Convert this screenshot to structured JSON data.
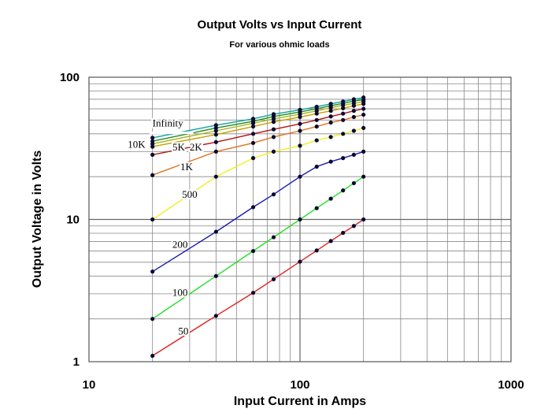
{
  "chart_data": {
    "type": "line",
    "title": "Output Volts vs Input Current",
    "subtitle": "For various ohmic loads",
    "xlabel": "Input Current in Amps",
    "ylabel": "Output Voltage in Volts",
    "xscale": "log",
    "yscale": "log",
    "xlim": [
      10,
      1000
    ],
    "ylim": [
      1,
      100
    ],
    "x_ticks": [
      "10",
      "100",
      "1000"
    ],
    "y_ticks": [
      "1",
      "10",
      "100"
    ],
    "grid": true,
    "legend": "none",
    "x": [
      20,
      40,
      60,
      75,
      100,
      120,
      140,
      160,
      180,
      200
    ],
    "series": [
      {
        "name": "Infinity",
        "color": "#14A0A0",
        "values": [
          37.5,
          46,
          51,
          55,
          59,
          62,
          65,
          67.5,
          70,
          72
        ]
      },
      {
        "name": "10K",
        "color": "#208C20",
        "values": [
          35.5,
          44,
          49,
          53,
          57,
          60,
          63,
          65.5,
          68,
          69.5
        ]
      },
      {
        "name": "5K",
        "color": "#A8B41E",
        "values": [
          34,
          42,
          47.5,
          51,
          55,
          58,
          61,
          63.5,
          65.5,
          67.5
        ]
      },
      {
        "name": "2K",
        "color": "#C8A000",
        "values": [
          32.5,
          39.5,
          45,
          48.5,
          52.5,
          55.5,
          58,
          60.5,
          63,
          65
        ]
      },
      {
        "name": "1K",
        "color": "#B41414",
        "values": [
          28.5,
          35,
          40,
          43,
          47,
          50,
          53,
          55.5,
          58,
          60
        ]
      },
      {
        "name": "",
        "color": "#E0701A",
        "values": [
          20.5,
          30,
          34.5,
          38,
          42,
          45,
          48,
          50,
          52.5,
          54.5
        ]
      },
      {
        "name": "500",
        "color": "#F0F020",
        "values": [
          10,
          20,
          27,
          30,
          33,
          36,
          38,
          40,
          42,
          44
        ]
      },
      {
        "name": "200",
        "color": "#1A1AB4",
        "values": [
          4.3,
          8.2,
          12.2,
          15,
          20,
          23.5,
          25.5,
          27,
          28.5,
          30
        ]
      },
      {
        "name": "100",
        "color": "#20E020",
        "values": [
          2,
          4,
          6,
          7.5,
          10,
          12,
          14,
          16,
          18,
          20
        ]
      },
      {
        "name": "50",
        "color": "#E02020",
        "values": [
          1.1,
          2.1,
          3.05,
          3.8,
          5.05,
          6.05,
          7.05,
          8.05,
          9,
          10
        ]
      }
    ]
  }
}
